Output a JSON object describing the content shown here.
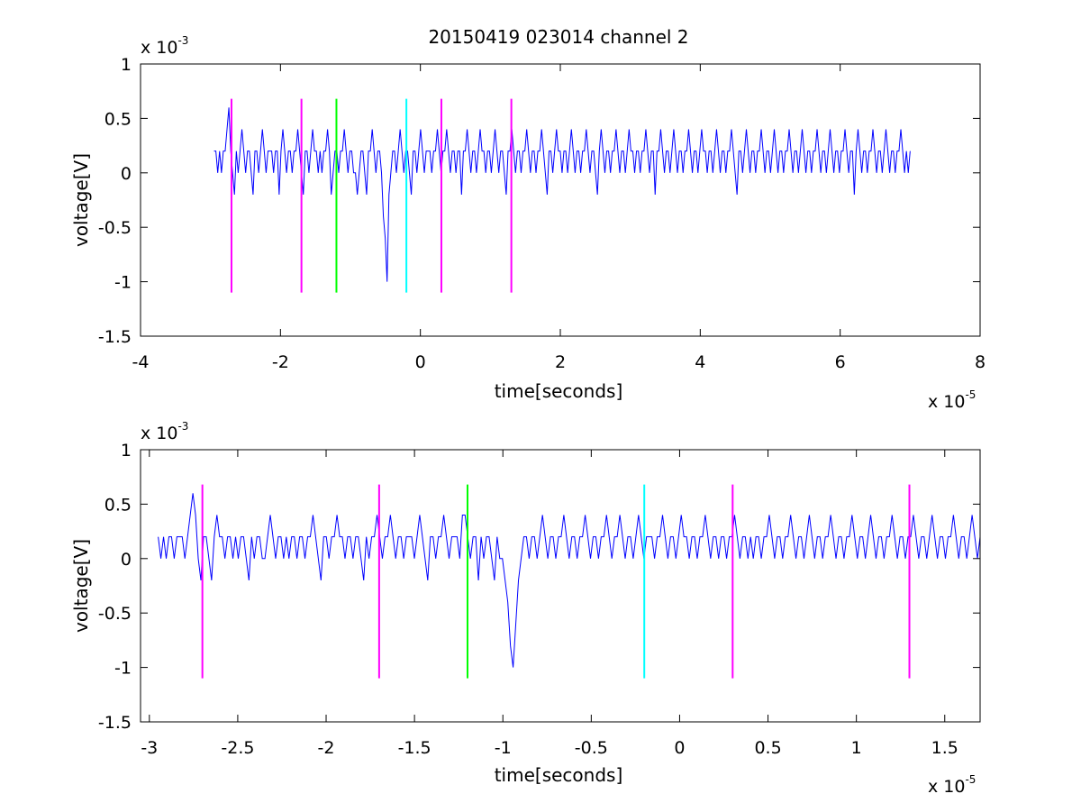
{
  "figure": {
    "title": "20150419 023014 channel 2"
  },
  "chart_data": [
    {
      "type": "line",
      "xlabel": "time[seconds]",
      "ylabel": "voltage[V]",
      "x_multiplier": {
        "base": "x 10",
        "exponent": "-5"
      },
      "y_multiplier": {
        "base": "x 10",
        "exponent": "-3"
      },
      "xlim": [
        -4,
        8
      ],
      "ylim": [
        -1.5,
        1
      ],
      "xticks": [
        -4,
        -2,
        0,
        2,
        4,
        6,
        8
      ],
      "xtick_labels": [
        "-4",
        "-2",
        "0",
        "2",
        "4",
        "6",
        "8"
      ],
      "yticks": [
        -1.5,
        -1,
        -0.5,
        0,
        0.5,
        1
      ],
      "ytick_labels": [
        "-1.5",
        "-1",
        "-0.5",
        "0",
        "0.5",
        "1"
      ],
      "grid": false,
      "series": [
        {
          "color": "#0000ff",
          "x_range": [
            -2.95,
            7.0
          ],
          "values": [
            0.2,
            0.2,
            0.0,
            0.2,
            0.0,
            0.2,
            0.2,
            0.4,
            0.6,
            0.2,
            0.0,
            -0.2,
            0.2,
            0.0,
            0.2,
            0.4,
            0.2,
            0.0,
            0.2,
            0.2,
            0.0,
            -0.2,
            0.2,
            0.2,
            0.0,
            0.2,
            0.4,
            0.2,
            0.0,
            0.2,
            0.2,
            0.2,
            0.0,
            0.2,
            0.2,
            -0.2,
            0.2,
            0.4,
            0.2,
            0.0,
            0.2,
            0.2,
            0.0,
            0.2,
            0.2,
            0.4,
            0.2,
            0.0,
            -0.2,
            0.2,
            0.2,
            0.0,
            0.2,
            0.4,
            0.2,
            0.2,
            0.0,
            0.2,
            0.0,
            0.2,
            0.2,
            0.4,
            0.2,
            -0.2,
            0.0,
            0.2,
            0.2,
            0.0,
            0.2,
            0.2,
            0.4,
            0.2,
            0.0,
            0.2,
            0.2,
            0.0,
            0.0,
            -0.2,
            0.0,
            0.2,
            0.2,
            0.0,
            -0.2,
            0.2,
            0.2,
            0.4,
            0.2,
            0.0,
            0.2,
            0.2,
            0.0,
            -0.4,
            -0.6,
            -1.0,
            -0.2,
            0.0,
            0.2,
            0.2,
            0.0,
            0.2,
            0.4,
            0.2,
            0.0,
            0.2,
            0.2,
            0.0,
            -0.2,
            0.2,
            0.2,
            0.0,
            0.2,
            0.4,
            0.2,
            0.0,
            0.2,
            0.2,
            0.2,
            0.0,
            0.2,
            0.2,
            0.4,
            0.2,
            0.0,
            0.2,
            0.2,
            0.4,
            0.2,
            0.0,
            0.2,
            0.2,
            0.0,
            0.2,
            0.2,
            -0.2,
            0.2,
            0.2,
            0.4,
            0.2,
            0.0,
            0.2,
            0.2,
            0.0,
            0.2,
            0.4,
            0.2,
            0.2,
            0.0,
            0.2,
            0.2,
            0.0,
            0.2,
            0.4,
            0.2,
            0.0,
            0.2,
            0.2,
            0.0,
            -0.2,
            0.2,
            0.2,
            0.4,
            0.2,
            0.0,
            0.2,
            0.2,
            0.0,
            0.2,
            0.2,
            0.4,
            0.2,
            0.0,
            0.2,
            0.2,
            0.0,
            0.2,
            0.2,
            0.4,
            0.2,
            0.0,
            -0.2,
            0.2,
            0.2,
            0.0,
            0.2,
            0.4,
            0.2,
            0.2,
            0.0,
            0.2,
            0.2,
            0.0,
            0.2,
            0.4,
            0.2,
            0.0,
            0.2,
            0.2,
            0.0,
            0.2,
            0.2,
            0.4,
            0.2,
            0.0,
            0.2,
            0.2,
            0.0,
            -0.2,
            0.2,
            0.4,
            0.2,
            0.0,
            0.2,
            0.2,
            0.0,
            0.2,
            0.2,
            0.4,
            0.2,
            0.0,
            0.2,
            0.2,
            0.0,
            0.2,
            0.4,
            0.2,
            0.2,
            0.0,
            0.2,
            0.2,
            0.0,
            0.2,
            0.2,
            0.4,
            0.2,
            0.0,
            0.2,
            0.2,
            -0.2,
            0.2,
            0.2,
            0.4,
            0.2,
            0.0,
            0.2,
            0.2,
            0.0,
            0.2,
            0.4,
            0.2,
            0.0,
            0.2,
            0.2,
            0.0,
            0.2,
            0.2,
            0.4,
            0.2,
            0.0,
            0.2,
            0.2,
            0.0,
            0.2,
            0.4,
            0.2,
            0.2,
            0.0,
            0.2,
            0.2,
            0.0,
            0.2,
            0.4,
            0.2,
            0.0,
            0.2,
            0.2,
            0.0,
            0.2,
            0.2,
            0.4,
            0.2,
            0.0,
            -0.2,
            0.2,
            0.2,
            0.0,
            0.2,
            0.4,
            0.2,
            0.0,
            0.2,
            0.2,
            0.0,
            0.2,
            0.2,
            0.4,
            0.2,
            0.0,
            0.2,
            0.2,
            0.0,
            0.2,
            0.4,
            0.2,
            0.0,
            0.2,
            0.2,
            0.0,
            0.2,
            0.2,
            0.4,
            0.2,
            0.0,
            0.2,
            0.2,
            0.0,
            0.2,
            0.4,
            0.2,
            0.0,
            0.2,
            0.2,
            0.0,
            0.2,
            0.2,
            0.4,
            0.2,
            0.0,
            0.2,
            0.2,
            0.0,
            0.2,
            0.4,
            0.2,
            0.0,
            0.2,
            0.2,
            0.0,
            0.2,
            0.2,
            0.4,
            0.2,
            0.0,
            0.2,
            0.2,
            -0.2,
            0.2,
            0.4,
            0.2,
            0.0,
            0.2,
            0.2,
            0.0,
            0.2,
            0.2,
            0.4,
            0.2,
            0.0,
            0.2,
            0.2,
            0.0,
            0.2,
            0.4,
            0.2,
            0.0,
            0.2,
            0.2,
            0.0,
            0.2,
            0.2,
            0.4,
            0.2,
            0.0,
            0.2,
            0.0,
            0.2
          ]
        }
      ],
      "markers": [
        {
          "x": -2.7,
          "color": "#ff00ff",
          "ymin": -1.1,
          "ymax": 0.68
        },
        {
          "x": -1.7,
          "color": "#ff00ff",
          "ymin": -1.1,
          "ymax": 0.68
        },
        {
          "x": -1.2,
          "color": "#00ff00",
          "ymin": -1.1,
          "ymax": 0.68
        },
        {
          "x": -0.2,
          "color": "#00ffff",
          "ymin": -1.1,
          "ymax": 0.68
        },
        {
          "x": 0.3,
          "color": "#ff00ff",
          "ymin": -1.1,
          "ymax": 0.68
        },
        {
          "x": 1.3,
          "color": "#ff00ff",
          "ymin": -1.1,
          "ymax": 0.68
        }
      ]
    },
    {
      "type": "line",
      "xlabel": "time[seconds]",
      "ylabel": "voltage[V]",
      "x_multiplier": {
        "base": "x 10",
        "exponent": "-5"
      },
      "y_multiplier": {
        "base": "x 10",
        "exponent": "-3"
      },
      "xlim": [
        -3.05,
        1.7
      ],
      "ylim": [
        -1.5,
        1
      ],
      "xticks": [
        -3,
        -2.5,
        -2,
        -1.5,
        -1,
        -0.5,
        0,
        0.5,
        1,
        1.5
      ],
      "xtick_labels": [
        "-3",
        "-2.5",
        "-2",
        "-1.5",
        "-1",
        "-0.5",
        "0",
        "0.5",
        "1",
        "1.5"
      ],
      "yticks": [
        -1.5,
        -1,
        -0.5,
        0,
        0.5,
        1
      ],
      "ytick_labels": [
        "-1.5",
        "-1",
        "-0.5",
        "0",
        "0.5",
        "1"
      ],
      "grid": false,
      "series": [
        {
          "color": "#0000ff",
          "x_range": [
            -2.95,
            1.7
          ],
          "values": [
            0.2,
            0.0,
            0.2,
            0.0,
            0.2,
            0.2,
            0.0,
            0.2,
            0.2,
            0.2,
            0.0,
            0.2,
            0.4,
            0.6,
            0.4,
            0.0,
            -0.2,
            0.2,
            0.2,
            0.0,
            -0.2,
            0.2,
            0.4,
            0.2,
            0.2,
            0.0,
            0.2,
            0.2,
            0.0,
            0.2,
            0.0,
            0.2,
            0.2,
            0.0,
            -0.2,
            0.2,
            0.0,
            0.2,
            0.2,
            0.0,
            0.0,
            0.2,
            0.4,
            0.2,
            0.0,
            0.2,
            0.2,
            0.0,
            0.2,
            0.0,
            0.2,
            0.2,
            0.0,
            0.2,
            0.2,
            0.0,
            0.2,
            0.2,
            0.4,
            0.2,
            0.0,
            -0.2,
            0.2,
            0.2,
            0.0,
            0.2,
            0.2,
            0.4,
            0.2,
            0.2,
            0.0,
            0.2,
            0.2,
            0.0,
            0.2,
            0.2,
            0.0,
            -0.2,
            0.2,
            0.0,
            0.2,
            0.2,
            0.4,
            0.2,
            0.0,
            0.2,
            0.2,
            0.4,
            0.2,
            0.0,
            0.2,
            0.2,
            0.0,
            0.2,
            0.2,
            0.2,
            0.0,
            0.2,
            0.4,
            0.2,
            0.0,
            -0.2,
            0.2,
            0.2,
            0.0,
            0.2,
            0.2,
            0.4,
            0.2,
            0.0,
            0.2,
            0.2,
            0.2,
            0.0,
            0.4,
            0.4,
            0.2,
            0.0,
            0.2,
            0.2,
            -0.2,
            0.2,
            0.0,
            0.2,
            0.2,
            0.0,
            -0.2,
            0.2,
            0.0,
            0.0,
            -0.2,
            -0.4,
            -0.8,
            -1.0,
            -0.6,
            -0.2,
            0.0,
            0.2,
            0.2,
            0.0,
            0.2,
            0.2,
            0.0,
            0.2,
            0.4,
            0.2,
            0.0,
            0.2,
            0.2,
            0.0,
            0.2,
            0.2,
            0.4,
            0.2,
            0.0,
            0.2,
            0.2,
            0.0,
            0.2,
            0.2,
            0.4,
            0.2,
            0.0,
            0.2,
            0.2,
            0.0,
            0.2,
            0.2,
            0.4,
            0.2,
            0.0,
            0.2,
            0.2,
            0.4,
            0.2,
            0.0,
            0.2,
            0.2,
            0.0,
            0.2,
            0.4,
            0.2,
            0.0,
            0.2,
            0.2,
            0.2,
            0.0,
            0.2,
            0.2,
            0.4,
            0.2,
            0.0,
            0.2,
            0.2,
            0.0,
            0.2,
            0.4,
            0.2,
            0.2,
            0.0,
            0.2,
            0.2,
            0.0,
            0.2,
            0.2,
            0.4,
            0.2,
            0.0,
            0.2,
            0.2,
            0.0,
            0.2,
            0.2,
            0.0,
            0.2,
            0.2,
            0.4,
            0.2,
            0.0,
            0.2,
            0.2,
            0.0,
            0.2,
            0.0,
            0.2,
            0.2,
            0.0,
            0.2,
            0.2,
            0.4,
            0.2,
            0.0,
            0.2,
            0.2,
            0.0,
            0.2,
            0.2,
            0.4,
            0.2,
            0.0,
            0.2,
            0.2,
            0.0,
            0.2,
            0.4,
            0.2,
            0.0,
            0.2,
            0.2,
            0.0,
            0.2,
            0.2,
            0.4,
            0.2,
            0.0,
            0.2,
            0.2,
            0.0,
            0.2,
            0.2,
            0.4,
            0.2,
            0.0,
            0.2,
            0.2,
            0.0,
            0.2,
            0.4,
            0.2,
            0.0,
            0.2,
            0.2,
            0.0,
            0.2,
            0.2,
            0.4,
            0.2,
            0.0,
            0.2,
            0.2,
            0.0,
            0.2,
            0.2,
            0.4,
            0.2,
            0.0,
            0.2,
            0.2,
            0.0,
            0.2,
            0.4,
            0.2,
            0.0,
            0.2,
            0.2,
            0.0,
            0.2,
            0.2,
            0.4,
            0.2,
            0.0,
            0.2,
            0.2,
            0.0,
            0.2,
            0.4,
            0.2,
            0.0,
            0.2
          ]
        }
      ],
      "markers": [
        {
          "x": -2.7,
          "color": "#ff00ff",
          "ymin": -1.1,
          "ymax": 0.68
        },
        {
          "x": -1.7,
          "color": "#ff00ff",
          "ymin": -1.1,
          "ymax": 0.68
        },
        {
          "x": -1.2,
          "color": "#00ff00",
          "ymin": -1.1,
          "ymax": 0.68
        },
        {
          "x": -0.2,
          "color": "#00ffff",
          "ymin": -1.1,
          "ymax": 0.68
        },
        {
          "x": 0.3,
          "color": "#ff00ff",
          "ymin": -1.1,
          "ymax": 0.68
        },
        {
          "x": 1.3,
          "color": "#ff00ff",
          "ymin": -1.1,
          "ymax": 0.68
        }
      ]
    }
  ]
}
